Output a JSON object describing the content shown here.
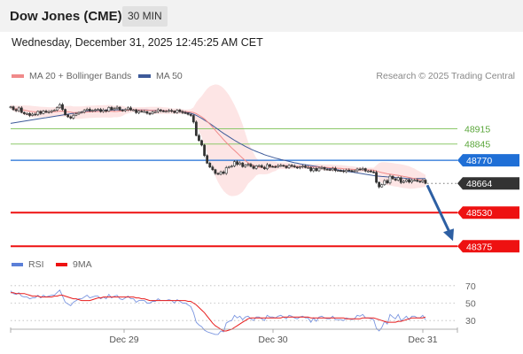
{
  "header": {
    "title": "Dow Jones (CME)",
    "timeframe": "30 MIN"
  },
  "datetime": "Wednesday, December 31, 2025 12:45:25 AM CET",
  "legend": {
    "ma20": "MA 20 + Bollinger Bands",
    "ma50": "MA 50"
  },
  "copyright": "Research © 2025 Trading Central",
  "rsi_legend": {
    "rsi": "RSI",
    "ma9": "9MA"
  },
  "colors": {
    "ma20": "#f08a8a",
    "ma50": "#3d5a99",
    "resistance": "#8dc86a",
    "pivot": "#1f6fd6",
    "support": "#ee1111",
    "last": "#333333",
    "arrow": "#2d5fa3",
    "bands": "#fde0e0"
  },
  "chart_data": [
    {
      "type": "line",
      "subtype": "candlestick",
      "x_labels": [
        "Dec 29",
        "Dec 30",
        "Dec 31"
      ],
      "levels": [
        {
          "name": "resistance-2",
          "value": 48915,
          "label": "48915"
        },
        {
          "name": "resistance-1",
          "value": 48845,
          "label": "48845"
        },
        {
          "name": "pivot",
          "value": 48770,
          "label": "48770"
        },
        {
          "name": "last",
          "value": 48664,
          "label": "48664"
        },
        {
          "name": "support-1",
          "value": 48530,
          "label": "48530"
        },
        {
          "name": "support-2",
          "value": 48375,
          "label": "48375"
        }
      ],
      "ylim": [
        48360,
        49100
      ],
      "close": [
        49016,
        49003,
        48998,
        49011,
        48990,
        48984,
        48985,
        48976,
        48982,
        48980,
        48995,
        48985,
        48996,
        48991,
        48993,
        48998,
        49000,
        49012,
        49026,
        49004,
        48979,
        48970,
        48964,
        48977,
        48983,
        48990,
        48992,
        49000,
        49005,
        48997,
        49000,
        49003,
        49004,
        48994,
        49001,
        48996,
        49013,
        49003,
        49008,
        49014,
        49001,
        48998,
        49003,
        49011,
        49001,
        49002,
        48989,
        48996,
        48994,
        48994,
        48986,
        48984,
        48992,
        48993,
        49002,
        48997,
        48995,
        48995,
        48999,
        48996,
        48989,
        49001,
        48994,
        48989,
        48987,
        48981,
        48976,
        48946,
        48884,
        48861,
        48840,
        48792,
        48757,
        48739,
        48727,
        48710,
        48706,
        48717,
        48710,
        48736,
        48741,
        48744,
        48764,
        48751,
        48758,
        48741,
        48748,
        48752,
        48742,
        48733,
        48745,
        48746,
        48738,
        48731,
        48750,
        48742,
        48741,
        48740,
        48746,
        48747,
        48743,
        48736,
        48747,
        48744,
        48739,
        48735,
        48740,
        48744,
        48737,
        48737,
        48722,
        48733,
        48722,
        48734,
        48737,
        48729,
        48728,
        48726,
        48733,
        48723,
        48723,
        48722,
        48718,
        48725,
        48723,
        48720,
        48722,
        48730,
        48727,
        48732,
        48721,
        48721,
        48717,
        48715,
        48669,
        48648,
        48658,
        48677,
        48666,
        48697,
        48685,
        48679,
        48690,
        48668,
        48673,
        48681,
        48670,
        48678,
        48679,
        48674,
        48672,
        48679,
        48664
      ],
      "ma50": [
        48940,
        48942,
        48944,
        48946,
        48948,
        48950,
        48952,
        48954,
        48956,
        48958,
        48960,
        48962,
        48964,
        48966,
        48968,
        48970,
        48972,
        48974,
        48976,
        48978,
        48980,
        48982,
        48984,
        48986,
        48988,
        48990,
        48992,
        48994,
        48995,
        48996,
        48997,
        48998,
        48999,
        49000,
        49000,
        49001,
        49001,
        49001,
        49001,
        49002,
        49002,
        49002,
        49002,
        49002,
        49002,
        49002,
        49002,
        49001,
        49001,
        49001,
        49001,
        49000,
        49000,
        49000,
        48999,
        48999,
        48999,
        48998,
        48998,
        48997,
        48996,
        48995,
        48994,
        48993,
        48991,
        48989,
        48986,
        48982,
        48977,
        48970,
        48963,
        48955,
        48947,
        48939,
        48930,
        48921,
        48912,
        48903,
        48894,
        48886,
        48878,
        48870,
        48862,
        48855,
        48848,
        48841,
        48834,
        48828,
        48822,
        48816,
        48811,
        48806,
        48801,
        48796,
        48792,
        48788,
        48784,
        48780,
        48777,
        48774,
        48771,
        48768,
        48765,
        48762,
        48759,
        48757,
        48754,
        48752,
        48750,
        48748,
        48746,
        48744,
        48742,
        48740,
        48738,
        48736,
        48734,
        48732,
        48730,
        48728,
        48726,
        48724,
        48722,
        48720,
        48718,
        48716,
        48714,
        48712,
        48710,
        48708,
        48706,
        48704,
        48702,
        48700,
        48698,
        48697,
        48696,
        48695,
        48694,
        48693,
        48692,
        48691,
        48690,
        48689,
        48688,
        48687,
        48686,
        48686,
        48686,
        48686,
        48686,
        48686,
        48686
      ]
    },
    {
      "type": "line",
      "name": "RSI",
      "ylim": [
        20,
        80
      ],
      "ticks": [
        70,
        50,
        30
      ],
      "rsi": [
        64,
        61,
        60,
        62,
        58,
        57,
        57,
        55,
        56,
        56,
        59,
        56,
        59,
        57,
        58,
        59,
        59,
        62,
        65,
        58,
        51,
        49,
        47,
        51,
        53,
        55,
        55,
        57,
        59,
        56,
        57,
        58,
        58,
        55,
        57,
        55,
        60,
        56,
        58,
        59,
        55,
        54,
        56,
        58,
        55,
        55,
        51,
        53,
        53,
        53,
        50,
        50,
        52,
        52,
        55,
        53,
        53,
        53,
        54,
        53,
        50,
        54,
        52,
        50,
        50,
        48,
        46,
        39,
        28,
        25,
        23,
        19,
        17,
        16,
        15,
        14,
        14,
        18,
        17,
        27,
        29,
        30,
        36,
        33,
        35,
        31,
        34,
        35,
        32,
        30,
        34,
        34,
        32,
        30,
        36,
        34,
        34,
        33,
        35,
        36,
        34,
        32,
        36,
        35,
        33,
        32,
        34,
        35,
        33,
        33,
        28,
        33,
        29,
        34,
        35,
        33,
        32,
        32,
        35,
        31,
        31,
        31,
        30,
        33,
        32,
        31,
        32,
        36,
        35,
        37,
        33,
        33,
        32,
        31,
        21,
        18,
        22,
        29,
        26,
        37,
        34,
        32,
        37,
        30,
        32,
        35,
        31,
        35,
        35,
        33,
        33,
        36,
        31
      ],
      "ma9": [
        62,
        62,
        61,
        61,
        61,
        61,
        60,
        59,
        58,
        58,
        58,
        57,
        57,
        57,
        57,
        57,
        58,
        58,
        59,
        59,
        58,
        57,
        56,
        55,
        55,
        54,
        53,
        53,
        53,
        53,
        54,
        55,
        56,
        56,
        57,
        57,
        57,
        57,
        57,
        57,
        57,
        57,
        57,
        57,
        57,
        57,
        56,
        56,
        55,
        55,
        54,
        53,
        53,
        53,
        53,
        53,
        53,
        53,
        53,
        53,
        53,
        53,
        53,
        53,
        53,
        52,
        52,
        50,
        48,
        45,
        42,
        39,
        35,
        31,
        27,
        24,
        22,
        20,
        18,
        18,
        19,
        20,
        22,
        24,
        26,
        28,
        30,
        32,
        33,
        33,
        33,
        33,
        33,
        33,
        33,
        33,
        33,
        33,
        33,
        33,
        34,
        34,
        34,
        34,
        34,
        34,
        34,
        34,
        34,
        34,
        33,
        33,
        33,
        33,
        33,
        33,
        33,
        33,
        33,
        33,
        33,
        33,
        33,
        32,
        32,
        32,
        32,
        32,
        32,
        33,
        33,
        33,
        33,
        33,
        32,
        31,
        30,
        29,
        28,
        28,
        28,
        28,
        29,
        29,
        30,
        31,
        32,
        33,
        33,
        33,
        33,
        33,
        34
      ]
    }
  ]
}
